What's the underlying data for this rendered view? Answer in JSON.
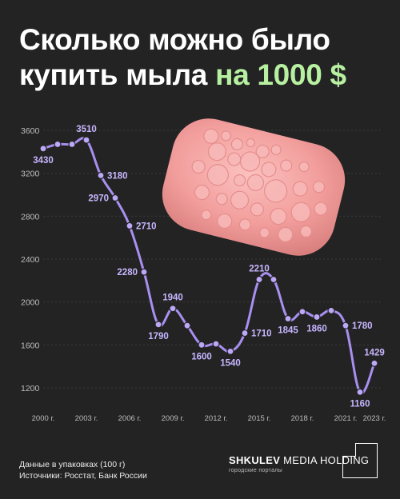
{
  "header": {
    "title_main": "Сколько можно было купить мыла ",
    "title_accent": "на 1000 $"
  },
  "footer": {
    "note": "Данные в упаковках (100 г)",
    "sources": "Источники: Росстат, Банк России",
    "brand_bold": "SHKULEV",
    "brand_rest": " MEDIA HOLDING",
    "brand_sub": "городские порталы"
  },
  "colors": {
    "background": "#232323",
    "line": "#a88ff0",
    "accent": "#b7f0a0",
    "grid": "#3a3a3a",
    "soap": "#f4a3a3"
  },
  "illustration": "soap-bar",
  "chart_data": {
    "type": "line",
    "xlabel": "",
    "ylabel": "",
    "ylim": [
      1000,
      3700
    ],
    "yticks": [
      1200,
      1600,
      2000,
      2400,
      2800,
      3200,
      3600
    ],
    "xticks": [
      {
        "x": 2000,
        "label": "2000 г."
      },
      {
        "x": 2003,
        "label": "2003 г."
      },
      {
        "x": 2006,
        "label": "2006 г."
      },
      {
        "x": 2009,
        "label": "2009 г."
      },
      {
        "x": 2012,
        "label": "2012 г."
      },
      {
        "x": 2015,
        "label": "2015 г."
      },
      {
        "x": 2018,
        "label": "2018 г."
      },
      {
        "x": 2021,
        "label": "2021 г."
      },
      {
        "x": 2023,
        "label": "2023 г."
      }
    ],
    "grid": "horizontal dashed",
    "series": [
      {
        "x": [
          2000,
          2001,
          2002,
          2003,
          2004,
          2005,
          2006,
          2007,
          2008,
          2009,
          2010,
          2011,
          2012,
          2013,
          2014,
          2015,
          2016,
          2017,
          2018,
          2019,
          2020,
          2021,
          2022,
          2023
        ],
        "values": [
          3430,
          3470,
          3470,
          3510,
          3180,
          2970,
          2710,
          2280,
          1790,
          1940,
          1780,
          1600,
          1610,
          1540,
          1710,
          2210,
          2210,
          1845,
          1910,
          1860,
          1920,
          1780,
          1160,
          1429
        ]
      }
    ],
    "data_labels": [
      {
        "x": 2000,
        "text": "3430",
        "pos": "below"
      },
      {
        "x": 2003,
        "text": "3510",
        "pos": "above"
      },
      {
        "x": 2004,
        "text": "3180",
        "pos": "right"
      },
      {
        "x": 2005,
        "text": "2970",
        "pos": "left"
      },
      {
        "x": 2006,
        "text": "2710",
        "pos": "right"
      },
      {
        "x": 2007,
        "text": "2280",
        "pos": "left"
      },
      {
        "x": 2008,
        "text": "1790",
        "pos": "below"
      },
      {
        "x": 2009,
        "text": "1940",
        "pos": "above"
      },
      {
        "x": 2011,
        "text": "1600",
        "pos": "below"
      },
      {
        "x": 2013,
        "text": "1540",
        "pos": "below"
      },
      {
        "x": 2014,
        "text": "1710",
        "pos": "right"
      },
      {
        "x": 2015,
        "text": "2210",
        "pos": "above"
      },
      {
        "x": 2017,
        "text": "1845",
        "pos": "below"
      },
      {
        "x": 2019,
        "text": "1860",
        "pos": "below"
      },
      {
        "x": 2021,
        "text": "1780",
        "pos": "right"
      },
      {
        "x": 2022,
        "text": "1160",
        "pos": "below"
      },
      {
        "x": 2023,
        "text": "1429",
        "pos": "above"
      }
    ]
  }
}
